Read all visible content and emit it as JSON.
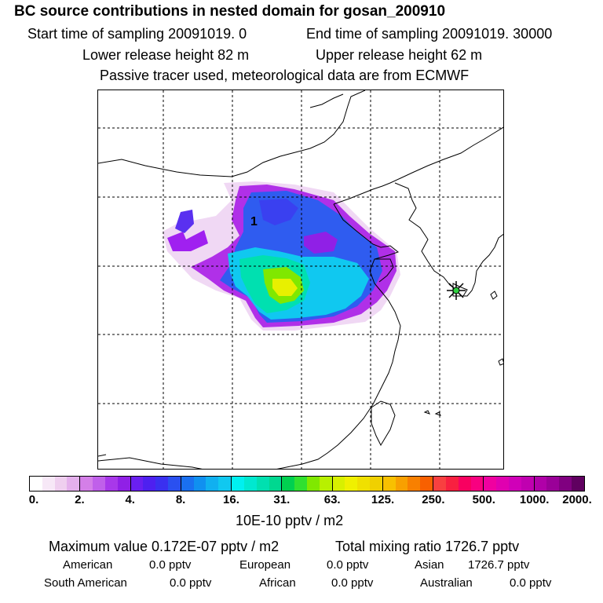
{
  "header": {
    "title": "BC  source contributions in nested domain for gosan_200910",
    "start_time": "Start time of sampling 20091019.     0",
    "end_time": "End time of sampling 20091019. 30000",
    "lower_release": "Lower release height   82 m",
    "upper_release": "Upper release height   62 m",
    "tracer_note": "Passive tracer used, meteorological data are from ECMWF"
  },
  "map": {
    "marker_label": "1",
    "receptor_marker": "star-icon"
  },
  "legend": {
    "ticks": [
      "0.",
      "2.",
      "4.",
      "8.",
      "16.",
      "31.",
      "63.",
      "125.",
      "250.",
      "500.",
      "1000.",
      "2000."
    ],
    "units": "10E-10 pptv / m2",
    "colors": [
      [
        "#ffffff",
        "#f7e8f7",
        "#efcfef",
        "#e4b0ec"
      ],
      [
        "#d47fe8",
        "#c060ea",
        "#a838ea",
        "#9020e6"
      ],
      [
        "#6a1ff0",
        "#4e20f0",
        "#3a30f0",
        "#2a50f0"
      ],
      [
        "#1a70f0",
        "#1090f0",
        "#10b0f0",
        "#10c8f0"
      ],
      [
        "#00f0f0",
        "#00e8d0",
        "#00e0b0",
        "#00d890"
      ],
      [
        "#00d050",
        "#30e030",
        "#80e800",
        "#b8f000"
      ],
      [
        "#d8f000",
        "#f0f000",
        "#f0e000",
        "#f0d000"
      ],
      [
        "#f8c000",
        "#f8a000",
        "#f88000",
        "#f86000"
      ],
      [
        "#f84040",
        "#f82040",
        "#f80060",
        "#f80080"
      ],
      [
        "#f000a0",
        "#e000b0",
        "#d000b8",
        "#c000b0"
      ],
      [
        "#b000a8",
        "#9a0098",
        "#800080",
        "#600060"
      ]
    ]
  },
  "stats": {
    "max_value": "Maximum value  0.172E-07 pptv / m2",
    "total_mixing": "Total mixing ratio     1726.7 pptv",
    "rows": [
      [
        {
          "name": "American",
          "value": "0.0 pptv"
        },
        {
          "name": "European",
          "value": "0.0 pptv"
        },
        {
          "name": "Asian",
          "value": "1726.7 pptv"
        }
      ],
      [
        {
          "name": "South American",
          "value": "0.0 pptv"
        },
        {
          "name": "African",
          "value": "0.0 pptv"
        },
        {
          "name": "Australian",
          "value": "0.0 pptv"
        }
      ]
    ]
  }
}
